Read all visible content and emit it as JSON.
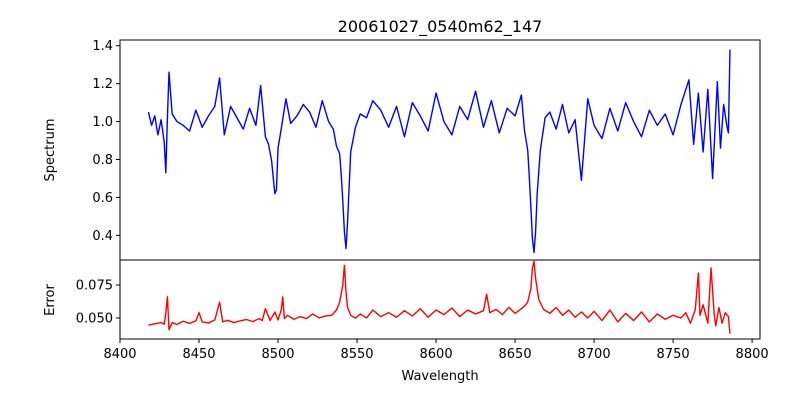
{
  "chart_data": [
    {
      "type": "line",
      "title": "20061027_0540m62_147",
      "xlabel": "",
      "ylabel": "Spectrum",
      "xlim": [
        8400,
        8805
      ],
      "ylim": [
        0.27,
        1.43
      ],
      "yticks": [
        0.4,
        0.6,
        0.8,
        1.0,
        1.2,
        1.4
      ],
      "ytick_labels": [
        "0.4",
        "0.6",
        "0.8",
        "1.0",
        "1.2",
        "1.4"
      ],
      "grid": false,
      "color": "#0000ff",
      "series": [
        {
          "x": [
            8418,
            8420,
            8422,
            8424,
            8426,
            8428,
            8429,
            8430,
            8431,
            8433,
            8436,
            8440,
            8444,
            8448,
            8452,
            8456,
            8460,
            8463,
            8466,
            8470,
            8474,
            8478,
            8482,
            8486,
            8489,
            8492,
            8494,
            8496,
            8497,
            8498,
            8499,
            8500,
            8502,
            8505,
            8508,
            8512,
            8516,
            8520,
            8524,
            8528,
            8532,
            8535,
            8537,
            8539,
            8540,
            8541,
            8542,
            8543,
            8544,
            8546,
            8549,
            8552,
            8556,
            8560,
            8565,
            8570,
            8575,
            8580,
            8585,
            8590,
            8595,
            8600,
            8605,
            8610,
            8615,
            8620,
            8625,
            8630,
            8635,
            8640,
            8645,
            8650,
            8654,
            8656,
            8658,
            8659,
            8660,
            8661,
            8662,
            8663,
            8664,
            8666,
            8669,
            8672,
            8676,
            8680,
            8684,
            8688,
            8692,
            8696,
            8700,
            8705,
            8710,
            8715,
            8720,
            8725,
            8730,
            8735,
            8740,
            8745,
            8750,
            8755,
            8760,
            8763,
            8766,
            8769,
            8772,
            8775,
            8778,
            8780,
            8782,
            8784,
            8785,
            8786
          ],
          "y": [
            1.05,
            0.98,
            1.03,
            0.93,
            1.01,
            0.89,
            0.73,
            1.02,
            1.26,
            1.04,
            1.0,
            0.98,
            0.95,
            1.06,
            0.97,
            1.03,
            1.08,
            1.23,
            0.93,
            1.08,
            1.02,
            0.96,
            1.07,
            0.98,
            1.19,
            0.92,
            0.88,
            0.79,
            0.7,
            0.62,
            0.64,
            0.86,
            0.96,
            1.12,
            0.99,
            1.03,
            1.09,
            1.05,
            0.97,
            1.11,
            1.0,
            0.96,
            0.87,
            0.83,
            0.72,
            0.58,
            0.42,
            0.33,
            0.47,
            0.84,
            0.97,
            1.04,
            1.02,
            1.11,
            1.06,
            0.97,
            1.08,
            0.92,
            1.1,
            1.03,
            0.95,
            1.15,
            1.0,
            0.93,
            1.08,
            1.01,
            1.16,
            0.97,
            1.11,
            0.94,
            1.07,
            1.03,
            1.14,
            0.95,
            0.85,
            0.71,
            0.55,
            0.38,
            0.31,
            0.42,
            0.62,
            0.85,
            1.02,
            1.05,
            0.96,
            1.09,
            0.94,
            1.01,
            0.69,
            1.12,
            0.98,
            0.91,
            1.07,
            0.95,
            1.1,
            1.0,
            0.92,
            1.06,
            0.98,
            1.04,
            0.93,
            1.09,
            1.22,
            0.88,
            1.15,
            0.84,
            1.17,
            0.7,
            1.21,
            0.86,
            1.09,
            0.98,
            0.94,
            1.38
          ]
        }
      ]
    },
    {
      "type": "line",
      "title": "",
      "xlabel": "Wavelength",
      "ylabel": "Error",
      "xlim": [
        8400,
        8805
      ],
      "ylim": [
        0.034,
        0.094
      ],
      "xticks": [
        8400,
        8450,
        8500,
        8550,
        8600,
        8650,
        8700,
        8750,
        8800
      ],
      "xtick_labels": [
        "8400",
        "8450",
        "8500",
        "8550",
        "8600",
        "8650",
        "8700",
        "8750",
        "8800"
      ],
      "yticks": [
        0.05,
        0.075
      ],
      "ytick_labels": [
        "0.050",
        "0.075"
      ],
      "grid": false,
      "color": "#ff0000",
      "series": [
        {
          "x": [
            8418,
            8422,
            8426,
            8428,
            8429,
            8430,
            8431,
            8433,
            8436,
            8440,
            8444,
            8448,
            8450,
            8452,
            8456,
            8460,
            8463,
            8465,
            8468,
            8472,
            8476,
            8480,
            8484,
            8488,
            8490,
            8492,
            8495,
            8498,
            8500,
            8502,
            8503,
            8504,
            8506,
            8510,
            8514,
            8518,
            8522,
            8526,
            8530,
            8534,
            8537,
            8539,
            8541,
            8542,
            8543,
            8544,
            8546,
            8549,
            8552,
            8556,
            8560,
            8565,
            8570,
            8575,
            8580,
            8585,
            8590,
            8595,
            8600,
            8605,
            8610,
            8615,
            8620,
            8625,
            8630,
            8632,
            8634,
            8638,
            8642,
            8646,
            8650,
            8654,
            8656,
            8658,
            8660,
            8661,
            8662,
            8663,
            8665,
            8668,
            8672,
            8676,
            8680,
            8684,
            8688,
            8692,
            8696,
            8700,
            8705,
            8710,
            8715,
            8720,
            8725,
            8730,
            8735,
            8740,
            8745,
            8750,
            8755,
            8758,
            8761,
            8764,
            8766,
            8767,
            8769,
            8772,
            8774,
            8776,
            8777,
            8779,
            8781,
            8783,
            8785,
            8786
          ],
          "y": [
            0.0445,
            0.0455,
            0.0465,
            0.0452,
            0.054,
            0.066,
            0.041,
            0.0465,
            0.045,
            0.0475,
            0.0458,
            0.0478,
            0.054,
            0.047,
            0.0462,
            0.0485,
            0.062,
            0.047,
            0.0482,
            0.0465,
            0.0478,
            0.0488,
            0.0472,
            0.0495,
            0.048,
            0.057,
            0.048,
            0.0545,
            0.0485,
            0.056,
            0.066,
            0.0495,
            0.052,
            0.049,
            0.051,
            0.0495,
            0.053,
            0.05,
            0.0515,
            0.052,
            0.056,
            0.062,
            0.075,
            0.09,
            0.07,
            0.058,
            0.052,
            0.0498,
            0.053,
            0.05,
            0.056,
            0.051,
            0.054,
            0.0505,
            0.0555,
            0.0515,
            0.057,
            0.0505,
            0.056,
            0.0525,
            0.0575,
            0.051,
            0.056,
            0.053,
            0.0555,
            0.068,
            0.054,
            0.0565,
            0.0525,
            0.058,
            0.0535,
            0.057,
            0.059,
            0.062,
            0.072,
            0.088,
            0.093,
            0.08,
            0.064,
            0.0565,
            0.0535,
            0.058,
            0.052,
            0.056,
            0.0505,
            0.0545,
            0.05,
            0.055,
            0.048,
            0.056,
            0.047,
            0.0535,
            0.048,
            0.0545,
            0.047,
            0.053,
            0.049,
            0.052,
            0.05,
            0.054,
            0.046,
            0.056,
            0.084,
            0.052,
            0.06,
            0.046,
            0.088,
            0.053,
            0.044,
            0.058,
            0.046,
            0.054,
            0.051,
            0.038
          ]
        }
      ]
    }
  ]
}
